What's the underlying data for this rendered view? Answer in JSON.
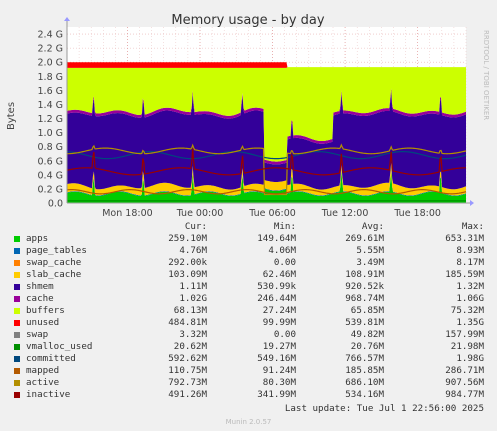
{
  "chart_data": {
    "type": "area",
    "title": "Memory usage - by day",
    "ylabel": "Bytes",
    "side_label": "RRDTOOL / TOBI OETIKER",
    "y_unit": "G",
    "ylim": [
      0,
      2.5
    ],
    "yticks": [
      0.0,
      0.2,
      0.4,
      0.6,
      0.8,
      1.0,
      1.2,
      1.4,
      1.6,
      1.8,
      2.0,
      2.2,
      2.4
    ],
    "ytick_labels": [
      "0.0",
      "0.2 G",
      "0.4 G",
      "0.6 G",
      "0.8 G",
      "1.0 G",
      "1.2 G",
      "1.4 G",
      "1.6 G",
      "1.8 G",
      "2.0 G",
      "2.2 G",
      "2.4 G"
    ],
    "x_range_hours": [
      -33.0,
      0.0
    ],
    "xtick_hours": [
      -28,
      -22,
      -16,
      -10,
      -4
    ],
    "xtick_labels": [
      "Mon 18:00",
      "Tue 00:00",
      "Tue 06:00",
      "Tue 12:00",
      "Tue 18:00"
    ],
    "grid": true,
    "stacked_series": [
      {
        "name": "apps",
        "color": "#00cc00",
        "level_g": 0.25
      },
      {
        "name": "page_tables",
        "color": "#0066b3",
        "level_g": 0.005
      },
      {
        "name": "swap_cache",
        "color": "#ff8000",
        "level_g": 0.0003
      },
      {
        "name": "slab_cache",
        "color": "#ffcc00",
        "level_g": 0.1
      },
      {
        "name": "shmem",
        "color": "#330099",
        "level_g": 0.001
      },
      {
        "name": "cache",
        "color": "#330099",
        "level_g": 1.02
      },
      {
        "name": "buffers",
        "color": "#990099",
        "level_g": 0.07
      },
      {
        "name": "unused",
        "color": "#ccff00",
        "level_g": 0.48
      },
      {
        "name": "swap",
        "color": "#ff0000",
        "level_g": 0.003
      }
    ],
    "line_series": [
      {
        "name": "vmalloc_used",
        "color": "#808080",
        "level_g": 0.02
      },
      {
        "name": "committed",
        "color": "#00487d",
        "level_g": 0.59
      },
      {
        "name": "mapped",
        "color": "#b35a00",
        "level_g": 0.11
      },
      {
        "name": "active",
        "color": "#b38f00",
        "level_g": 0.79
      },
      {
        "name": "inactive",
        "color": "#6b006b",
        "level_g": 0.49
      }
    ]
  },
  "legend": {
    "headers": {
      "cur": "Cur:",
      "min": "Min:",
      "avg": "Avg:",
      "max": "Max:"
    },
    "rows": [
      {
        "name": "apps",
        "color": "#00cc00",
        "cur": "259.10M",
        "min": "149.64M",
        "avg": "269.61M",
        "max": "653.31M"
      },
      {
        "name": "page_tables",
        "color": "#0066b3",
        "cur": "4.76M",
        "min": "4.06M",
        "avg": "5.55M",
        "max": "8.93M"
      },
      {
        "name": "swap_cache",
        "color": "#ff8000",
        "cur": "292.00k",
        "min": "0.00",
        "avg": "3.49M",
        "max": "8.17M"
      },
      {
        "name": "slab_cache",
        "color": "#ffcc00",
        "cur": "103.09M",
        "min": "62.46M",
        "avg": "108.91M",
        "max": "185.59M"
      },
      {
        "name": "shmem",
        "color": "#330099",
        "cur": "1.11M",
        "min": "530.99k",
        "avg": "920.52k",
        "max": "1.32M"
      },
      {
        "name": "cache",
        "color": "#990099",
        "cur": "1.02G",
        "min": "246.44M",
        "avg": "968.74M",
        "max": "1.06G"
      },
      {
        "name": "buffers",
        "color": "#ccff00",
        "cur": "68.13M",
        "min": "27.24M",
        "avg": "65.85M",
        "max": "75.32M"
      },
      {
        "name": "unused",
        "color": "#ff0000",
        "cur": "484.81M",
        "min": "99.99M",
        "avg": "539.81M",
        "max": "1.35G"
      },
      {
        "name": "swap",
        "color": "#808080",
        "cur": "3.32M",
        "min": "0.00",
        "avg": "49.82M",
        "max": "157.99M"
      },
      {
        "name": "vmalloc_used",
        "color": "#008f00",
        "cur": "20.62M",
        "min": "19.27M",
        "avg": "20.76M",
        "max": "21.98M"
      },
      {
        "name": "committed",
        "color": "#00487d",
        "cur": "592.62M",
        "min": "549.16M",
        "avg": "766.57M",
        "max": "1.98G"
      },
      {
        "name": "mapped",
        "color": "#b35a00",
        "cur": "110.75M",
        "min": "91.24M",
        "avg": "185.85M",
        "max": "286.71M"
      },
      {
        "name": "active",
        "color": "#b38f00",
        "cur": "792.73M",
        "min": "80.30M",
        "avg": "686.10M",
        "max": "907.56M"
      },
      {
        "name": "inactive",
        "color": "#990000",
        "cur": "491.26M",
        "min": "341.99M",
        "avg": "534.16M",
        "max": "984.77M"
      }
    ]
  },
  "last_update": "Last update: Tue Jul  1 22:56:00 2025",
  "footer": "Munin 2.0.57"
}
